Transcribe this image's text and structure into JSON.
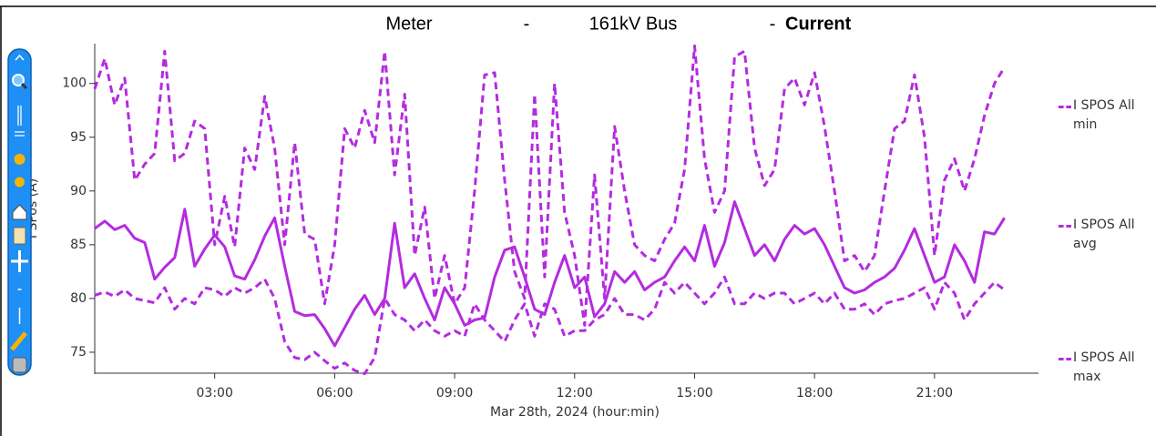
{
  "chart_data": {
    "type": "line",
    "title_parts": [
      "Meter",
      "-",
      "161kV Bus",
      "-",
      "Current"
    ],
    "xlabel": "Mar 28th, 2024 (hour:min)",
    "ylabel": "I SPos (A)",
    "xlim": [
      "00:00",
      "23:36"
    ],
    "xticks": [
      "03:00",
      "06:00",
      "09:00",
      "12:00",
      "15:00",
      "18:00",
      "21:00"
    ],
    "ylim": [
      73.05,
      103.7
    ],
    "yticks": [
      75,
      80,
      85,
      90,
      95,
      100
    ],
    "legend": "right",
    "x": [
      "00:00",
      "00:15",
      "00:30",
      "00:45",
      "01:00",
      "01:15",
      "01:30",
      "01:45",
      "02:00",
      "02:15",
      "02:30",
      "02:45",
      "03:00",
      "03:15",
      "03:30",
      "03:45",
      "04:00",
      "04:15",
      "04:30",
      "04:45",
      "05:00",
      "05:15",
      "05:30",
      "05:45",
      "06:00",
      "06:15",
      "06:30",
      "06:45",
      "07:00",
      "07:15",
      "07:30",
      "07:45",
      "08:00",
      "08:15",
      "08:30",
      "08:45",
      "09:00",
      "09:15",
      "09:30",
      "09:45",
      "10:00",
      "10:15",
      "10:30",
      "10:45",
      "11:00",
      "11:15",
      "11:30",
      "11:45",
      "12:00",
      "12:15",
      "12:30",
      "12:45",
      "13:00",
      "13:15",
      "13:30",
      "13:45",
      "14:00",
      "14:15",
      "14:30",
      "14:45",
      "15:00",
      "15:15",
      "15:30",
      "15:45",
      "16:00",
      "16:15",
      "16:30",
      "16:45",
      "17:00",
      "17:15",
      "17:30",
      "17:45",
      "18:00",
      "18:15",
      "18:30",
      "18:45",
      "19:00",
      "19:15",
      "19:30",
      "19:45",
      "20:00",
      "20:15",
      "20:30",
      "20:45",
      "21:00",
      "21:15",
      "21:30",
      "21:45",
      "22:00",
      "22:15",
      "22:30",
      "22:45"
    ],
    "series": [
      {
        "name": "I SPOS All min",
        "color": "#b42be0",
        "dash": true,
        "values": [
          80.3,
          80.6,
          80.2,
          80.8,
          80.0,
          79.8,
          79.6,
          81.0,
          79.0,
          80.0,
          79.5,
          81.0,
          80.8,
          80.2,
          81.0,
          80.5,
          81.0,
          81.8,
          80.0,
          76.0,
          74.5,
          74.3,
          75.0,
          74.2,
          73.5,
          74.0,
          73.3,
          73.0,
          74.5,
          80.0,
          78.5,
          78.0,
          77.0,
          78.0,
          77.0,
          76.5,
          77.0,
          76.5,
          79.5,
          78.0,
          77.0,
          76.0,
          78.0,
          79.5,
          76.5,
          79.5,
          79.0,
          76.5,
          77.0,
          77.0,
          78.0,
          78.5,
          80.0,
          78.5,
          78.5,
          78.0,
          79.0,
          81.5,
          80.5,
          81.5,
          80.5,
          79.5,
          80.5,
          82.0,
          79.5,
          79.5,
          80.5,
          80.0,
          80.5,
          80.5,
          79.5,
          80.0,
          80.5,
          79.5,
          80.5,
          79.0,
          79.0,
          79.5,
          78.5,
          79.5,
          79.8,
          80.0,
          80.5,
          81.0,
          79.0,
          81.5,
          80.5,
          78.0,
          79.5,
          80.5,
          81.5,
          80.8
        ]
      },
      {
        "name": "I SPOS All avg",
        "color": "#b42be0",
        "dash": false,
        "values": [
          86.5,
          87.2,
          86.4,
          86.8,
          85.6,
          85.2,
          81.8,
          82.9,
          83.8,
          88.3,
          83.0,
          84.6,
          85.9,
          84.8,
          82.1,
          81.8,
          83.6,
          85.8,
          87.5,
          83.0,
          78.8,
          78.4,
          78.5,
          77.2,
          75.6,
          77.3,
          79.0,
          80.3,
          78.5,
          80.0,
          87.0,
          81.0,
          82.3,
          80.0,
          78.0,
          81.0,
          79.5,
          77.5,
          78.0,
          78.2,
          82.0,
          84.5,
          84.8,
          82.0,
          79.0,
          78.5,
          81.5,
          84.0,
          81.0,
          82.0,
          78.3,
          79.5,
          82.5,
          81.5,
          82.5,
          80.8,
          81.5,
          82.0,
          83.5,
          84.8,
          83.5,
          86.8,
          83.0,
          85.2,
          89.0,
          86.5,
          84.0,
          85.0,
          83.5,
          85.5,
          86.8,
          86.0,
          86.5,
          85.0,
          83.0,
          81.0,
          80.5,
          80.8,
          81.5,
          82.0,
          82.8,
          84.5,
          86.5,
          84.0,
          81.5,
          82.0,
          85.0,
          83.5,
          81.5,
          86.2,
          86.0,
          87.5
        ]
      },
      {
        "name": "I SPOS All max",
        "color": "#b42be0",
        "dash": true,
        "values": [
          99.5,
          102.3,
          98.0,
          100.5,
          91.0,
          92.5,
          93.5,
          103.0,
          92.8,
          93.5,
          96.5,
          95.8,
          85.0,
          89.5,
          84.8,
          94.0,
          92.0,
          98.8,
          94.0,
          85.0,
          94.5,
          86.0,
          85.5,
          79.5,
          85.0,
          95.8,
          94.0,
          97.5,
          94.5,
          103.0,
          91.5,
          99.0,
          84.0,
          88.5,
          80.0,
          84.0,
          79.5,
          81.0,
          90.0,
          100.8,
          101.0,
          91.0,
          82.5,
          80.0,
          99.0,
          82.0,
          100.0,
          88.0,
          84.0,
          77.5,
          91.5,
          80.0,
          96.0,
          90.0,
          85.0,
          84.0,
          83.5,
          85.5,
          87.0,
          92.0,
          103.5,
          93.0,
          88.0,
          90.0,
          102.5,
          103.0,
          94.0,
          90.5,
          92.0,
          99.5,
          100.5,
          98.0,
          101.0,
          96.0,
          90.0,
          83.5,
          84.0,
          82.5,
          84.0,
          90.0,
          95.8,
          96.5,
          100.8,
          95.0,
          84.0,
          91.0,
          93.0,
          90.0,
          93.0,
          97.0,
          100.0,
          101.5
        ]
      }
    ]
  }
}
